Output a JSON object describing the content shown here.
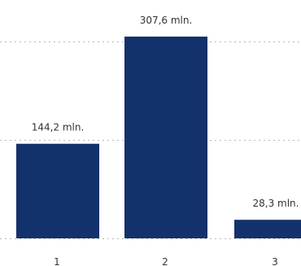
{
  "chart_data": {
    "type": "bar",
    "categories": [
      "1",
      "2",
      "3"
    ],
    "values": [
      144.2,
      307.6,
      28.3
    ],
    "value_labels": [
      "144,2 mln.",
      "307,6 mln.",
      "28,3 mln."
    ],
    "ylim": [
      0,
      310
    ],
    "gridlines": [
      0,
      150,
      300
    ],
    "grid": true,
    "bar_color": "#13316b"
  }
}
